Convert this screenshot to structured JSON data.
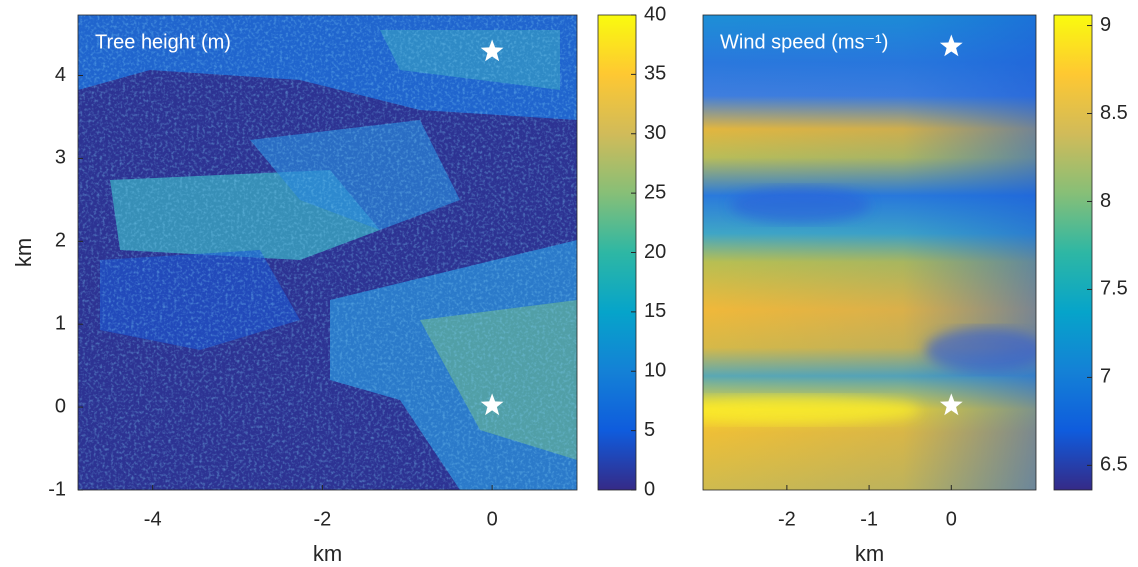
{
  "chart_data": [
    {
      "type": "heatmap",
      "annotation": "Tree height (m)",
      "xlabel": "km",
      "ylabel": "km",
      "xlim": [
        -4.88,
        1
      ],
      "xticks": [
        -4,
        -2,
        0
      ],
      "ylim": [
        -1,
        4.73
      ],
      "yticks": [
        -1,
        0,
        1,
        2,
        3,
        4
      ],
      "colormap": "parula",
      "clim": [
        0,
        40
      ],
      "cticks": [
        0,
        5,
        10,
        15,
        20,
        25,
        30,
        35,
        40
      ],
      "markers": {
        "x": [
          0,
          0
        ],
        "y": [
          4.29,
          0.02
        ],
        "color": "#ffffff"
      }
    },
    {
      "type": "heatmap",
      "annotation": "Wind speed (ms⁻¹)",
      "xlabel": "km",
      "xlim": [
        -3.02,
        1.03
      ],
      "xticks": [
        -2,
        -1,
        0
      ],
      "ylim": [
        -1,
        4.73
      ],
      "colormap": "parula",
      "clim": [
        6.36,
        9.06
      ],
      "cticks": [
        6.5,
        7,
        7.5,
        8,
        8.5,
        9
      ],
      "markers": {
        "x": [
          0,
          0
        ],
        "y": [
          4.35,
          0.02
        ],
        "color": "#ffffff"
      }
    }
  ]
}
